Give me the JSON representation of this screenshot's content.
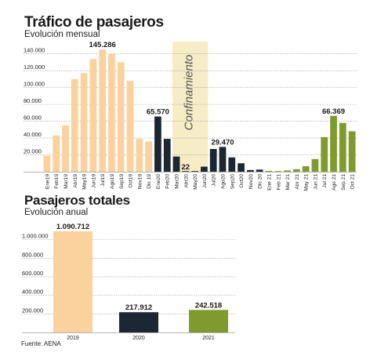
{
  "monthly": {
    "title": "Tráfico de pasajeros",
    "subtitle": "Evolución mensual",
    "annotation": "Confinamiento"
  },
  "annual": {
    "title": "Pasajeros totales",
    "subtitle": "Evolución anual"
  },
  "source": "Fuente: AENA",
  "colors": {
    "2019": "#fbd29e",
    "2020": "#1c2733",
    "2021": "#7f9b2e",
    "confinement": "#f6ecc6",
    "grid": "#9a9a9a"
  },
  "chart_data": [
    {
      "type": "bar",
      "title": "Tráfico de pasajeros",
      "subtitle": "Evolución mensual",
      "ylim": [
        0,
        150000
      ],
      "yticks": [
        "20.000",
        "40.000",
        "60.000",
        "80.000",
        "100.000",
        "120.000",
        "140.000"
      ],
      "grid": true,
      "categories": [
        "Ene19",
        "Feb19",
        "Mar19",
        "Abr19",
        "May19",
        "Jun19",
        "Jul19",
        "Ago19",
        "Sep19",
        "Oct19",
        "Nov19",
        "Dic 19",
        "Ene20",
        "Feb20",
        "Mar20",
        "Abr20",
        "May20",
        "Jun20",
        "Jul20",
        "Ago20",
        "Sep20",
        "Oct20",
        "Nov20",
        "Dic 20",
        "Ene 21",
        "Feb 21",
        "Mar 21",
        "Abr 21",
        "May 21",
        "Jun 21",
        "Jul 21",
        "Ago 21",
        "Sep 21",
        "Oct 21"
      ],
      "values": [
        19000,
        43000,
        55000,
        110000,
        117000,
        134000,
        145286,
        140000,
        130000,
        108000,
        39000,
        36000,
        65570,
        39000,
        18000,
        22,
        200,
        6000,
        27000,
        29470,
        17000,
        10000,
        2000,
        2500,
        1000,
        500,
        1500,
        3000,
        6500,
        15000,
        41000,
        66369,
        58000,
        48000
      ],
      "year": [
        "2019",
        "2019",
        "2019",
        "2019",
        "2019",
        "2019",
        "2019",
        "2019",
        "2019",
        "2019",
        "2019",
        "2019",
        "2020",
        "2020",
        "2020",
        "2020",
        "2020",
        "2020",
        "2020",
        "2020",
        "2020",
        "2020",
        "2020",
        "2020",
        "2021",
        "2021",
        "2021",
        "2021",
        "2021",
        "2021",
        "2021",
        "2021",
        "2021",
        "2021"
      ],
      "data_labels": [
        {
          "index": 6,
          "text": "145.286"
        },
        {
          "index": 12,
          "text": "65.570"
        },
        {
          "index": 15,
          "text": "22"
        },
        {
          "index": 19,
          "text": "29.470"
        },
        {
          "index": 31,
          "text": "66.369"
        }
      ],
      "shaded_range": {
        "from": "Mar20",
        "to": "Jun20",
        "label": "Confinamiento"
      }
    },
    {
      "type": "bar",
      "title": "Pasajeros totales",
      "subtitle": "Evolución anual",
      "ylim": [
        0,
        1150000
      ],
      "yticks": [
        "200.000",
        "400.000",
        "600.000",
        "800.000",
        "1.000.000"
      ],
      "grid": true,
      "categories": [
        "2019",
        "2020",
        "2021"
      ],
      "values": [
        1090712,
        217912,
        242518
      ],
      "data_labels": [
        "1.090.712",
        "217.912",
        "242.518"
      ]
    }
  ]
}
